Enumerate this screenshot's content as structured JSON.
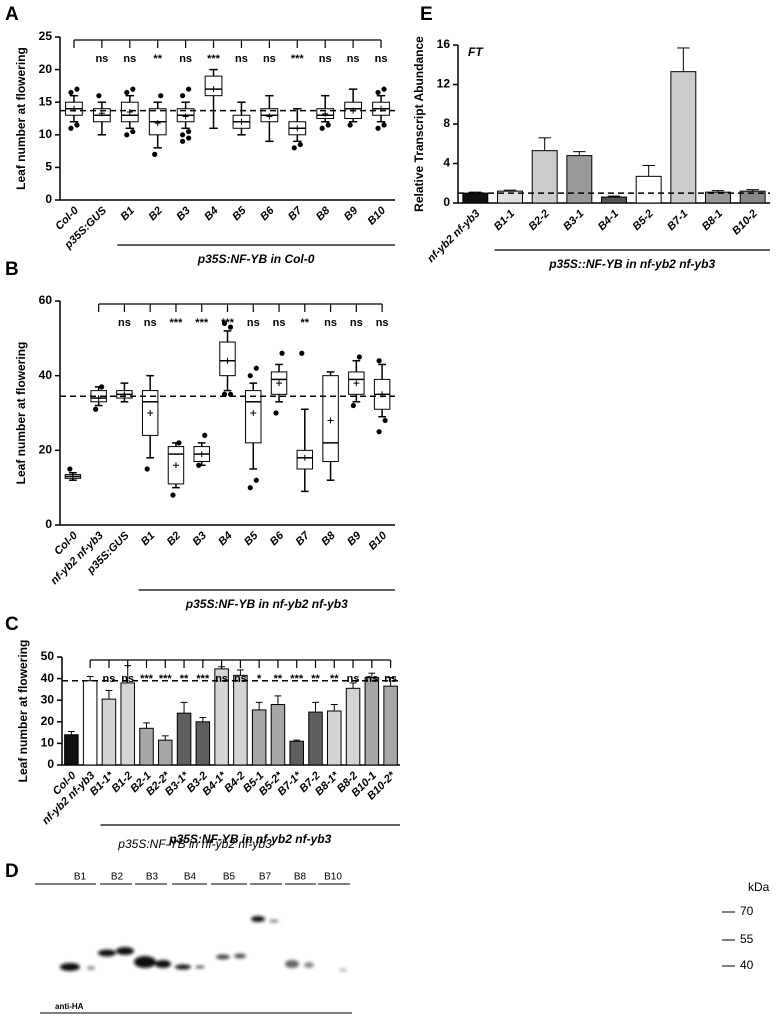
{
  "chart_data": [
    {
      "type": "box",
      "panel": "A",
      "ylabel": "Leaf number at flowering",
      "categories": [
        "Col-0",
        "p35S:GUS",
        "B1",
        "B2",
        "B3",
        "B4",
        "B5",
        "B6",
        "B7",
        "B8",
        "B9",
        "B10"
      ],
      "boxes": [
        {
          "whisker_low": 12,
          "q1": 13,
          "median": 14,
          "q3": 15,
          "whisker_high": 16,
          "mean": 14,
          "outliers": [
            11,
            11.5,
            16.5,
            17
          ]
        },
        {
          "whisker_low": 10,
          "q1": 12,
          "median": 13,
          "q3": 14,
          "whisker_high": 15,
          "mean": 13.3,
          "outliers": [
            16
          ]
        },
        {
          "whisker_low": 11,
          "q1": 12,
          "median": 13,
          "q3": 15,
          "whisker_high": 16,
          "mean": 13.5,
          "outliers": [
            10,
            10.5,
            16.5,
            17
          ]
        },
        {
          "whisker_low": 8,
          "q1": 10,
          "median": 12,
          "q3": 14,
          "whisker_high": 15,
          "mean": 11.8,
          "outliers": [
            7,
            16
          ]
        },
        {
          "whisker_low": 11,
          "q1": 12,
          "median": 13,
          "q3": 14,
          "whisker_high": 15,
          "mean": 12.8,
          "outliers": [
            9,
            9.5,
            10,
            10.5,
            16,
            17
          ]
        },
        {
          "whisker_low": 11,
          "q1": 16,
          "median": 17,
          "q3": 19,
          "whisker_high": 20,
          "mean": 17,
          "outliers": []
        },
        {
          "whisker_low": 10,
          "q1": 11,
          "median": 12,
          "q3": 13,
          "whisker_high": 15,
          "mean": 12,
          "outliers": []
        },
        {
          "whisker_low": 9,
          "q1": 12,
          "median": 13,
          "q3": 14,
          "whisker_high": 16,
          "mean": 12.8,
          "outliers": []
        },
        {
          "whisker_low": 9,
          "q1": 10,
          "median": 11,
          "q3": 12,
          "whisker_high": 14,
          "mean": 11,
          "outliers": [
            8,
            8.5
          ]
        },
        {
          "whisker_low": 12,
          "q1": 12.5,
          "median": 13,
          "q3": 14,
          "whisker_high": 16,
          "mean": 13.2,
          "outliers": [
            11,
            11.5
          ]
        },
        {
          "whisker_low": 12,
          "q1": 12.5,
          "median": 14,
          "q3": 15,
          "whisker_high": 17,
          "mean": 13.7,
          "outliers": [
            11.5
          ]
        },
        {
          "whisker_low": 12,
          "q1": 13,
          "median": 14,
          "q3": 15,
          "whisker_high": 16,
          "mean": 14,
          "outliers": [
            11,
            11.5,
            16.5,
            17
          ]
        }
      ],
      "significance": [
        null,
        "ns",
        "ns",
        "**",
        "ns",
        "***",
        "ns",
        "ns",
        "***",
        "ns",
        "ns",
        "ns"
      ],
      "reference_line": 13.7,
      "ylim": [
        0,
        25
      ],
      "yticks": [
        0,
        5,
        10,
        15,
        20,
        25
      ],
      "group_label": "p35S:NF-YB in Col-0"
    },
    {
      "type": "box",
      "panel": "B",
      "ylabel": "Leaf number at flowering",
      "categories": [
        "Col-0",
        "nf-yb2 nf-yb3",
        "p35S:GUS",
        "B1",
        "B2",
        "B3",
        "B4",
        "B5",
        "B6",
        "B7",
        "B8",
        "B9",
        "B10"
      ],
      "boxes": [
        {
          "whisker_low": 12,
          "q1": 12.5,
          "median": 13,
          "q3": 13.5,
          "whisker_high": 14,
          "mean": 13,
          "outliers": [
            15
          ]
        },
        {
          "whisker_low": 32,
          "q1": 33,
          "median": 34,
          "q3": 36,
          "whisker_high": 37,
          "mean": 34,
          "outliers": [
            31,
            37
          ]
        },
        {
          "whisker_low": 33,
          "q1": 34,
          "median": 35,
          "q3": 36,
          "whisker_high": 38,
          "mean": 35,
          "outliers": []
        },
        {
          "whisker_low": 18,
          "q1": 24,
          "median": 33,
          "q3": 36,
          "whisker_high": 40,
          "mean": 30,
          "outliers": [
            15
          ]
        },
        {
          "whisker_low": 10,
          "q1": 11,
          "median": 19,
          "q3": 21,
          "whisker_high": 22,
          "mean": 16,
          "outliers": [
            8,
            22
          ]
        },
        {
          "whisker_low": 16,
          "q1": 17,
          "median": 19,
          "q3": 21,
          "whisker_high": 22,
          "mean": 19,
          "outliers": [
            16,
            24
          ]
        },
        {
          "whisker_low": 36,
          "q1": 40,
          "median": 44,
          "q3": 49,
          "whisker_high": 52,
          "mean": 44,
          "outliers": [
            35,
            35,
            35,
            53,
            54
          ]
        },
        {
          "whisker_low": 15,
          "q1": 22,
          "median": 33,
          "q3": 36,
          "whisker_high": 38,
          "mean": 30,
          "outliers": [
            10,
            12,
            40,
            42
          ]
        },
        {
          "whisker_low": 33,
          "q1": 35,
          "median": 39,
          "q3": 41,
          "whisker_high": 43,
          "mean": 38,
          "outliers": [
            30,
            46
          ]
        },
        {
          "whisker_low": 9,
          "q1": 15,
          "median": 18,
          "q3": 20,
          "whisker_high": 31,
          "mean": 18,
          "outliers": [
            46
          ]
        },
        {
          "whisker_low": 12,
          "q1": 17,
          "median": 22,
          "q3": 40,
          "whisker_high": 41,
          "mean": 28,
          "outliers": []
        },
        {
          "whisker_low": 33,
          "q1": 35,
          "median": 39,
          "q3": 41,
          "whisker_high": 44,
          "mean": 38,
          "outliers": [
            32,
            45
          ]
        },
        {
          "whisker_low": 29,
          "q1": 31,
          "median": 35,
          "q3": 39,
          "whisker_high": 43,
          "mean": 35,
          "outliers": [
            25,
            28,
            44
          ]
        }
      ],
      "significance": [
        null,
        null,
        "ns",
        "ns",
        "***",
        "***",
        "***",
        "ns",
        "ns",
        "**",
        "ns",
        "ns",
        "ns"
      ],
      "reference_line": 34.5,
      "ylim": [
        0,
        60
      ],
      "yticks": [
        0,
        20,
        40,
        60
      ],
      "group_label": "p35S:NF-YB in nf-yb2 nf-yb3"
    },
    {
      "type": "bar",
      "panel": "C",
      "ylabel": "Leaf number at flowering",
      "categories": [
        "Col-0",
        "nf-yb2 nf-yb3",
        "B1-1*",
        "B1-2",
        "B2-1",
        "B2-2*",
        "B3-1*",
        "B3-2",
        "B4-1*",
        "B4-2",
        "B5-1",
        "B5-2*",
        "B7-1*",
        "B7-2",
        "B8-1*",
        "B8-2",
        "B10-1",
        "B10-2*"
      ],
      "values": [
        14,
        39,
        30.5,
        38,
        17,
        11.5,
        24,
        20,
        44.5,
        41.5,
        25.5,
        28,
        11,
        24.5,
        25,
        35.5,
        40.5,
        36.5
      ],
      "errors": [
        1.5,
        2,
        4,
        8,
        2.5,
        2,
        5,
        2,
        1,
        2.5,
        3.5,
        4,
        0.5,
        4.5,
        3,
        2.5,
        2,
        4
      ],
      "colors": [
        "#111111",
        "#ffffff",
        "#d4d4d4",
        "#d4d4d4",
        "#a6a6a6",
        "#a6a6a6",
        "#5e5e5e",
        "#5e5e5e",
        "#d4d4d4",
        "#d4d4d4",
        "#a6a6a6",
        "#a6a6a6",
        "#5e5e5e",
        "#5e5e5e",
        "#d4d4d4",
        "#d4d4d4",
        "#a6a6a6",
        "#a6a6a6"
      ],
      "significance": [
        null,
        null,
        "ns",
        "ns",
        "***",
        "***",
        "**",
        "***",
        "ns",
        "ns",
        "*",
        "**",
        "***",
        "**",
        "**",
        "ns",
        "ns",
        "ns"
      ],
      "reference_line": 39,
      "ylim": [
        0,
        50
      ],
      "yticks": [
        0,
        10,
        20,
        30,
        40,
        50
      ],
      "group_label": "p35S:NF-YB in nf-yb2 nf-yb3"
    },
    {
      "type": "bar",
      "panel": "E",
      "ylabel": "Relative Transcript Abundance",
      "annotation": "FT",
      "categories": [
        "nf-yb2 nf-yb3",
        "B1-1",
        "B2-2",
        "B3-1",
        "B4-1",
        "B5-2",
        "B7-1",
        "B8-1",
        "B10-2"
      ],
      "values": [
        1,
        1.2,
        5.3,
        4.8,
        0.6,
        2.7,
        13.3,
        1.1,
        1.2
      ],
      "errors": [
        0.1,
        0.1,
        1.3,
        0.4,
        0.1,
        1.1,
        2.4,
        0.15,
        0.15
      ],
      "colors": [
        "#111111",
        "#e0e0e0",
        "#cccccc",
        "#999999",
        "#555555",
        "#ffffff",
        "#cccccc",
        "#999999",
        "#888888"
      ],
      "reference_line": 1,
      "ylim": [
        0,
        16
      ],
      "yticks": [
        0,
        4,
        8,
        12,
        16
      ],
      "group_label": "p35S::NF-YB in nf-yb2 nf-yb3"
    }
  ],
  "blot": {
    "panel": "D",
    "title": "p35S:NF-YB in nf-yb2 nf-yb3",
    "lanes": [
      "B1",
      "B2",
      "B3",
      "B4",
      "B5",
      "B7",
      "B8",
      "B10"
    ],
    "unit_label": "kDa",
    "markers": [
      70,
      55,
      40
    ],
    "antibody": "anti-HA"
  }
}
